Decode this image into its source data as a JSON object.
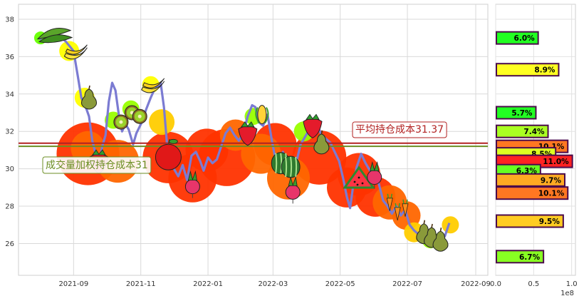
{
  "chart_data": [
    {
      "type": "line",
      "title": "",
      "xlabel": "",
      "ylabel": "",
      "ylim": [
        24.3,
        38.8
      ],
      "yticks": [
        26,
        28,
        30,
        32,
        34,
        36,
        38
      ],
      "xticks": [
        "2021-09",
        "2021-11",
        "2022-01",
        "2022-03",
        "2022-05",
        "2022-07",
        "2022-09"
      ],
      "grid": true,
      "series": [
        {
          "values": [
            [
              "2021-08-01",
              36.9
            ],
            [
              "2021-08-06",
              37.2
            ],
            [
              "2021-08-12",
              37.4
            ],
            [
              "2021-08-18",
              37.2
            ],
            [
              "2021-08-25",
              36.8
            ],
            [
              "2021-09-01",
              36.3
            ],
            [
              "2021-09-05",
              34.9
            ],
            [
              "2021-09-08",
              33.8
            ],
            [
              "2021-09-12",
              33.3
            ],
            [
              "2021-09-15",
              32.8
            ],
            [
              "2021-09-18",
              31.5
            ],
            [
              "2021-09-21",
              30.8
            ],
            [
              "2021-09-24",
              30.3
            ],
            [
              "2021-09-27",
              31.2
            ],
            [
              "2021-09-30",
              31.8
            ],
            [
              "2021-10-03",
              33.6
            ],
            [
              "2021-10-06",
              34.6
            ],
            [
              "2021-10-09",
              34.2
            ],
            [
              "2021-10-12",
              32.9
            ],
            [
              "2021-10-15",
              32.0
            ],
            [
              "2021-10-18",
              32.4
            ],
            [
              "2021-10-21",
              32.1
            ],
            [
              "2021-10-25",
              31.3
            ],
            [
              "2021-10-28",
              31.9
            ],
            [
              "2021-11-02",
              32.5
            ],
            [
              "2021-11-06",
              33.2
            ],
            [
              "2021-11-10",
              33.8
            ],
            [
              "2021-11-13",
              34.2
            ],
            [
              "2021-11-16",
              34.4
            ],
            [
              "2021-11-19",
              34.6
            ],
            [
              "2021-11-22",
              33.3
            ],
            [
              "2021-11-25",
              31.2
            ],
            [
              "2021-11-28",
              30.4
            ],
            [
              "2021-12-01",
              30.0
            ],
            [
              "2021-12-05",
              29.6
            ],
            [
              "2021-12-09",
              30.2
            ],
            [
              "2021-12-13",
              29.4
            ],
            [
              "2021-12-17",
              30.7
            ],
            [
              "2021-12-21",
              30.9
            ],
            [
              "2021-12-25",
              30.4
            ],
            [
              "2021-12-28",
              29.9
            ],
            [
              "2022-01-01",
              30.6
            ],
            [
              "2022-01-05",
              30.3
            ],
            [
              "2022-01-09",
              30.5
            ],
            [
              "2022-01-13",
              31.2
            ],
            [
              "2022-01-17",
              31.9
            ],
            [
              "2022-01-21",
              32.2
            ],
            [
              "2022-01-25",
              31.8
            ],
            [
              "2022-01-29",
              31.5
            ],
            [
              "2022-02-02",
              31.9
            ],
            [
              "2022-02-06",
              32.8
            ],
            [
              "2022-02-10",
              33.4
            ],
            [
              "2022-02-13",
              33.3
            ],
            [
              "2022-02-16",
              32.5
            ],
            [
              "2022-02-20",
              32.3
            ],
            [
              "2022-02-24",
              32.9
            ],
            [
              "2022-02-28",
              31.5
            ],
            [
              "2022-03-03",
              30.6
            ],
            [
              "2022-03-06",
              30.2
            ],
            [
              "2022-03-10",
              30.9
            ],
            [
              "2022-03-14",
              30.1
            ],
            [
              "2022-03-18",
              29.6
            ],
            [
              "2022-03-22",
              30.3
            ],
            [
              "2022-03-26",
              31.3
            ],
            [
              "2022-03-29",
              31.6
            ],
            [
              "2022-04-02",
              32.0
            ],
            [
              "2022-04-06",
              32.6
            ],
            [
              "2022-04-10",
              32.4
            ],
            [
              "2022-04-14",
              31.8
            ],
            [
              "2022-04-18",
              31.6
            ],
            [
              "2022-04-22",
              31.4
            ],
            [
              "2022-04-26",
              30.9
            ],
            [
              "2022-04-30",
              30.4
            ],
            [
              "2022-05-04",
              29.4
            ],
            [
              "2022-05-07",
              28.5
            ],
            [
              "2022-05-10",
              27.9
            ],
            [
              "2022-05-13",
              29.2
            ],
            [
              "2022-05-16",
              30.1
            ],
            [
              "2022-05-20",
              30.8
            ],
            [
              "2022-05-24",
              30.3
            ],
            [
              "2022-05-28",
              29.9
            ],
            [
              "2022-06-01",
              29.7
            ],
            [
              "2022-06-05",
              29.2
            ],
            [
              "2022-06-09",
              28.3
            ],
            [
              "2022-06-13",
              28.0
            ],
            [
              "2022-06-17",
              27.6
            ],
            [
              "2022-06-21",
              28.0
            ],
            [
              "2022-06-25",
              27.5
            ],
            [
              "2022-06-29",
              27.8
            ],
            [
              "2022-07-03",
              27.0
            ],
            [
              "2022-07-07",
              26.7
            ],
            [
              "2022-07-11",
              26.5
            ],
            [
              "2022-07-15",
              26.3
            ],
            [
              "2022-07-19",
              26.2
            ],
            [
              "2022-07-23",
              26.0
            ],
            [
              "2022-07-27",
              25.9
            ],
            [
              "2022-07-31",
              26.1
            ],
            [
              "2022-08-04",
              26.4
            ],
            [
              "2022-08-08",
              27.1
            ]
          ],
          "color": "#7b7bd2"
        }
      ],
      "reference_lines": [
        {
          "label": "平均持仓成本31.37",
          "value": 31.37,
          "color": "#b22222"
        },
        {
          "label": "成交量加权持仓成本31",
          "value": 31.2,
          "color": "#6b8e23"
        }
      ],
      "markers_decorative": [
        {
          "kind": "soybean",
          "date": "2021-08-15",
          "value": 37.1
        },
        {
          "kind": "banana",
          "date": "2021-09-03",
          "value": 36.1
        },
        {
          "kind": "pear",
          "date": "2021-09-15",
          "value": 33.8
        },
        {
          "kind": "strawberry",
          "date": "2021-09-24",
          "value": 30.4
        },
        {
          "kind": "kiwi",
          "date": "2021-10-14",
          "value": 32.5
        },
        {
          "kind": "kiwi",
          "date": "2021-10-24",
          "value": 33.0
        },
        {
          "kind": "kiwi",
          "date": "2021-10-31",
          "value": 32.8
        },
        {
          "kind": "banana",
          "date": "2021-11-12",
          "value": 34.3
        },
        {
          "kind": "apple",
          "date": "2021-11-26",
          "value": 30.7
        },
        {
          "kind": "radish",
          "date": "2021-12-18",
          "value": 29.2
        },
        {
          "kind": "strawberry",
          "date": "2022-02-06",
          "value": 31.9
        },
        {
          "kind": "corn",
          "date": "2022-02-19",
          "value": 32.9
        },
        {
          "kind": "watermelon",
          "date": "2022-03-08",
          "value": 30.3
        },
        {
          "kind": "watermelon",
          "date": "2022-03-17",
          "value": 30.1
        },
        {
          "kind": "radish",
          "date": "2022-03-19",
          "value": 28.9
        },
        {
          "kind": "strawberry",
          "date": "2022-04-06",
          "value": 32.3
        },
        {
          "kind": "pear",
          "date": "2022-04-14",
          "value": 31.4
        },
        {
          "kind": "watermelon-slice",
          "date": "2022-05-18",
          "value": 29.3
        },
        {
          "kind": "radish",
          "date": "2022-06-01",
          "value": 29.7
        },
        {
          "kind": "carrot",
          "date": "2022-06-15",
          "value": 28.2
        },
        {
          "kind": "carrot",
          "date": "2022-06-22",
          "value": 27.7
        },
        {
          "kind": "carrot",
          "date": "2022-06-29",
          "value": 27.9
        },
        {
          "kind": "pear",
          "date": "2022-07-16",
          "value": 26.6
        },
        {
          "kind": "pear",
          "date": "2022-07-23",
          "value": 26.4
        },
        {
          "kind": "pear",
          "date": "2022-07-31",
          "value": 26.2
        }
      ],
      "bubbles_decorative": [
        {
          "date": "2021-08-02",
          "value": 37.0,
          "color": "#66ff00",
          "r": 9
        },
        {
          "date": "2021-08-28",
          "value": 36.3,
          "color": "#ffff00",
          "r": 14
        },
        {
          "date": "2021-09-11",
          "value": 33.8,
          "color": "#ffff00",
          "r": 14
        },
        {
          "date": "2021-09-14",
          "value": 30.8,
          "color": "#ff3300",
          "r": 44
        },
        {
          "date": "2021-09-14",
          "value": 31.1,
          "color": "#ff6600",
          "r": 24
        },
        {
          "date": "2021-10-07",
          "value": 32.6,
          "color": "#99ff00",
          "r": 12
        },
        {
          "date": "2021-10-11",
          "value": 30.4,
          "color": "#ff6600",
          "r": 30
        },
        {
          "date": "2021-10-23",
          "value": 33.2,
          "color": "#99ff00",
          "r": 12
        },
        {
          "date": "2021-11-10",
          "value": 34.5,
          "color": "#ffff00",
          "r": 12
        },
        {
          "date": "2021-11-20",
          "value": 32.5,
          "color": "#ffcc00",
          "r": 18
        },
        {
          "date": "2021-11-26",
          "value": 30.6,
          "color": "#ff3300",
          "r": 36
        },
        {
          "date": "2021-12-18",
          "value": 29.5,
          "color": "#ff3300",
          "r": 34
        },
        {
          "date": "2021-12-31",
          "value": 31.0,
          "color": "#ff3300",
          "r": 30
        },
        {
          "date": "2022-01-18",
          "value": 30.6,
          "color": "#ff3300",
          "r": 40
        },
        {
          "date": "2022-01-26",
          "value": 31.8,
          "color": "#ff6600",
          "r": 22
        },
        {
          "date": "2022-02-11",
          "value": 32.8,
          "color": "#99ff00",
          "r": 12
        },
        {
          "date": "2022-02-18",
          "value": 30.8,
          "color": "#ff6600",
          "r": 28
        },
        {
          "date": "2022-03-03",
          "value": 31.3,
          "color": "#ff3300",
          "r": 30
        },
        {
          "date": "2022-03-15",
          "value": 29.5,
          "color": "#ff6600",
          "r": 30
        },
        {
          "date": "2022-03-29",
          "value": 32.0,
          "color": "#99ff00",
          "r": 14
        },
        {
          "date": "2022-04-12",
          "value": 30.6,
          "color": "#ff3300",
          "r": 38
        },
        {
          "date": "2022-05-07",
          "value": 29.0,
          "color": "#ff3300",
          "r": 28
        },
        {
          "date": "2022-05-18",
          "value": 29.7,
          "color": "#ff3300",
          "r": 30
        },
        {
          "date": "2022-06-02",
          "value": 28.5,
          "color": "#ff3300",
          "r": 28
        },
        {
          "date": "2022-06-15",
          "value": 28.2,
          "color": "#ff6600",
          "r": 24
        },
        {
          "date": "2022-06-30",
          "value": 27.5,
          "color": "#ff6600",
          "r": 20
        },
        {
          "date": "2022-07-07",
          "value": 26.6,
          "color": "#ffcc00",
          "r": 14
        },
        {
          "date": "2022-07-22",
          "value": 26.2,
          "color": "#99ff00",
          "r": 12
        },
        {
          "date": "2022-08-09",
          "value": 27.0,
          "color": "#ffcc00",
          "r": 12
        }
      ]
    },
    {
      "type": "bar",
      "orientation": "horizontal",
      "xlabel": "",
      "ylabel": "",
      "x_scale_label": "1e8",
      "xlim": [
        0,
        1.05
      ],
      "xticks": [
        "0.0",
        "0.5",
        "1.0"
      ],
      "ylim": [
        24.3,
        38.8
      ],
      "bars": [
        {
          "price": 37.0,
          "volume": 0.55,
          "label": "6.0%",
          "color": "#22ff22"
        },
        {
          "price": 35.3,
          "volume": 0.82,
          "label": "8.9%",
          "color": "#ffff22"
        },
        {
          "price": 33.0,
          "volume": 0.52,
          "label": "5.7%",
          "color": "#22ff22"
        },
        {
          "price": 32.0,
          "volume": 0.68,
          "label": "7.4%",
          "color": "#aaff22"
        },
        {
          "price": 31.2,
          "volume": 0.94,
          "label": "10.1%",
          "color": "#ff7722"
        },
        {
          "price": 30.8,
          "volume": 0.78,
          "label": "8.5%",
          "color": "#ddff22"
        },
        {
          "price": 30.4,
          "volume": 1.0,
          "label": "11.0%",
          "color": "#ff2222"
        },
        {
          "price": 29.9,
          "volume": 0.58,
          "label": "6.3%",
          "color": "#66ff22"
        },
        {
          "price": 29.4,
          "volume": 0.9,
          "label": "9.7%",
          "color": "#ffaa22"
        },
        {
          "price": 28.7,
          "volume": 0.94,
          "label": "10.1%",
          "color": "#ff7722"
        },
        {
          "price": 27.2,
          "volume": 0.88,
          "label": "9.5%",
          "color": "#ffcc22"
        },
        {
          "price": 25.3,
          "volume": 0.62,
          "label": "6.7%",
          "color": "#88ff22"
        }
      ]
    }
  ]
}
